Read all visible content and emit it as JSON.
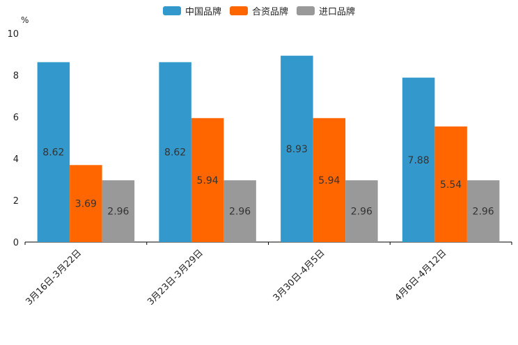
{
  "chart_data": {
    "type": "bar",
    "title": "",
    "ylabel": "%",
    "xlabel": "",
    "ylim": [
      0,
      10
    ],
    "yticks": [
      0,
      2,
      4,
      6,
      8,
      10
    ],
    "categories": [
      "3月16日-3月22日",
      "3月23日-3月29日",
      "3月30日-4月5日",
      "4月6日-4月12日"
    ],
    "series": [
      {
        "name": "中国品牌",
        "color": "#3399cc",
        "values": [
          8.62,
          8.62,
          8.93,
          7.88
        ],
        "labels": [
          "8.62",
          "8.62",
          "8.93",
          "7.88"
        ]
      },
      {
        "name": "合资品牌",
        "color": "#ff6600",
        "values": [
          3.69,
          5.94,
          5.94,
          5.54
        ],
        "labels": [
          "3.69",
          "5.94",
          "5.94",
          "5.54"
        ]
      },
      {
        "name": "进口品牌",
        "color": "#999999",
        "values": [
          2.96,
          2.96,
          2.96,
          2.96
        ],
        "labels": [
          "2.96",
          "2.96",
          "2.96",
          "2.96"
        ]
      }
    ],
    "legend_position": "top-center",
    "grid": false
  }
}
